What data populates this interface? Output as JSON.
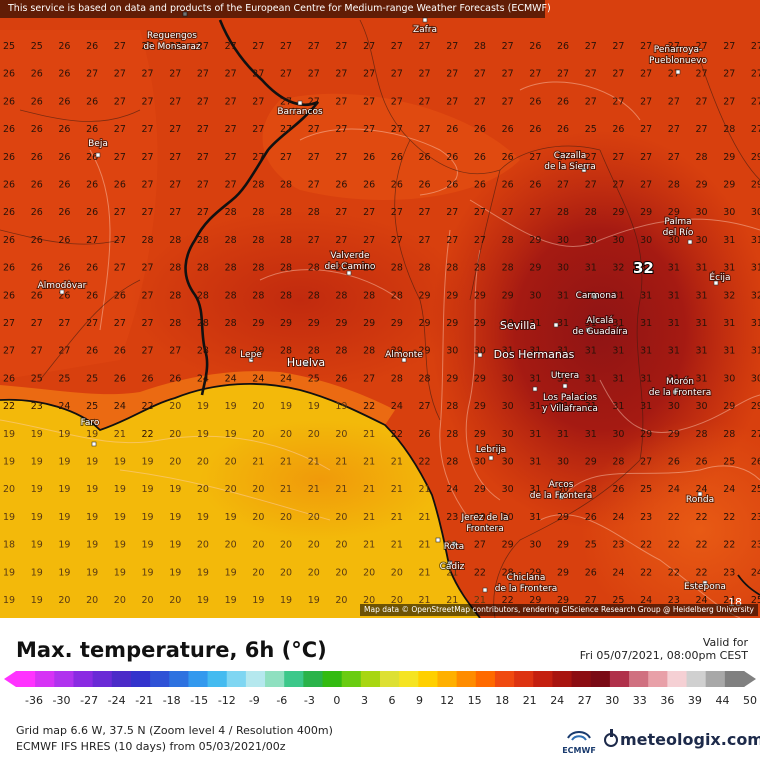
{
  "map": {
    "disclaimer": "This service is based on data and products of the European Centre for Medium-range Weather Forecasts (ECMWF)",
    "attribution": "Map data © OpenStreetMap contributors, rendering GIScience Research Group @ Heidelberg University",
    "max_marker": "32",
    "corner_value": "18",
    "places": [
      {
        "name": "Reguengos de Monsaraz",
        "lines": [
          "Reguengos",
          "de Monsaraz"
        ]
      },
      {
        "name": "Zafra",
        "lines": [
          "Zafra"
        ]
      },
      {
        "name": "Peñarroya-Pueblonuevo",
        "lines": [
          "Peñarroya-",
          "Pueblonuevo"
        ]
      },
      {
        "name": "Barrancos",
        "lines": [
          "Barrancos"
        ]
      },
      {
        "name": "Beja",
        "lines": [
          "Beja"
        ]
      },
      {
        "name": "Cazalla de la Sierra",
        "lines": [
          "Cazalla",
          "de la Sierra"
        ]
      },
      {
        "name": "Palma del Río",
        "lines": [
          "Palma",
          "del Río"
        ]
      },
      {
        "name": "Écija",
        "lines": [
          "Écija"
        ]
      },
      {
        "name": "Valverde del Camino",
        "lines": [
          "Valverde",
          "del Camino"
        ]
      },
      {
        "name": "Almodôvar",
        "lines": [
          "Almodôvar"
        ]
      },
      {
        "name": "Carmona",
        "lines": [
          "Carmona"
        ]
      },
      {
        "name": "Sevilla",
        "lines": [
          "Sevilla"
        ]
      },
      {
        "name": "Alcalá de Guadaíra",
        "lines": [
          "Alcalá",
          "de Guadaíra"
        ]
      },
      {
        "name": "Lepe",
        "lines": [
          "Lepe"
        ]
      },
      {
        "name": "Huelva",
        "lines": [
          "Huelva"
        ]
      },
      {
        "name": "Almonte",
        "lines": [
          "Almonte"
        ]
      },
      {
        "name": "Dos Hermanas",
        "lines": [
          "Dos Hermanas"
        ]
      },
      {
        "name": "Utrera",
        "lines": [
          "Utrera"
        ]
      },
      {
        "name": "Morón de la Frontera",
        "lines": [
          "Morón",
          "de la Frontera"
        ]
      },
      {
        "name": "Los Palacios y Villafranca",
        "lines": [
          "Los Palacios",
          "y Villafranca"
        ]
      },
      {
        "name": "Faro",
        "lines": [
          "Faro"
        ]
      },
      {
        "name": "Lebrija",
        "lines": [
          "Lebrija"
        ]
      },
      {
        "name": "Arcos de la Frontera",
        "lines": [
          "Arcos",
          "de la Frontera"
        ]
      },
      {
        "name": "Ronda",
        "lines": [
          "Ronda"
        ]
      },
      {
        "name": "Jerez de la Frontera",
        "lines": [
          "Jerez de la",
          "Frontera"
        ]
      },
      {
        "name": "Rota",
        "lines": [
          "Rota"
        ]
      },
      {
        "name": "Cádiz",
        "lines": [
          "Cádiz"
        ]
      },
      {
        "name": "Chiclana de la Frontera",
        "lines": [
          "Chiclana",
          "de la Frontera"
        ]
      },
      {
        "name": "Estepona",
        "lines": [
          "Estepona"
        ]
      }
    ],
    "grid_rows": [
      "25 25 26 26 27 27 27 27 27 27 27 27 27 27 27 27 27 28 27 26 26 27 27 27 27 27 27 27",
      "26 26 26 27 27 27 27 27 27 27 27 27 27 27 27 27 27 27 27 27 27 27 27 27 27 27 27 27",
      "26 26 26 26 27 27 27 27 27 27 27 27 27 27 27 27 27 27 27 26 26 27 27 27 27 27 27 27",
      "26 26 26 26 27 27 27 27 27 27 27 27 27 27 27 27 26 26 26 26 26 25 26 27 27 27 28 27",
      "26 26 26 26 27 27 27 27 27 27 27 27 27 26 26 26 26 26 26 27 27 27 27 27 27 28 29 29",
      "26 26 26 26 26 27 27 27 27 28 28 27 26 26 26 26 26 26 26 26 27 27 27 27 28 29 29 29",
      "26 26 26 26 27 27 27 27 28 28 28 28 27 27 27 27 27 27 27 27 28 28 29 29 29 30 30 30",
      "26 26 26 27 27 28 28 28 28 28 28 27 27 27 27 27 27 27 28 29 30 30 30 30 30 30 31 31",
      "26 26 26 26 27 27 28 28 28 28 28 28 29 28 28 28 28 28 28 29 30 31 32 32 31 31 31 31",
      "26 26 26 26 26 27 28 28 28 28 28 28 28 28 28 29 29 29 29 30 31 31 31 31 31 31 32 32",
      "27 27 27 27 27 27 28 28 28 29 29 29 29 29 29 29 29 29 30 31 31 31 31 31 31 31 31 31",
      "27 27 27 26 26 27 27 28 28 29 28 28 28 28 29 29 30 30 31 31 31 31 31 31 31 31 31 31",
      "26 25 25 25 26 26 26 24 24 24 24 25 26 27 28 28 29 29 30 31 31 31 31 31 31 31 30 30",
      "22 23 24 25 24 22 20 19 19 20 19 19 19 22 24 27 28 29 30 31 31 31 31 31 30 30 29 29",
      "19 19 19 19 21 22 20 19 19 20 20 20 20 21 22 26 28 29 30 31 31 31 30 29 29 28 28 27",
      "19 19 19 19 19 19 20 20 20 21 21 21 21 21 21 22 28 30 30 31 30 29 28 27 26 26 25 26",
      "20 19 19 19 19 19 19 20 20 20 21 21 21 21 21 21 24 29 30 31 30 28 26 25 24 24 24 25",
      "19 19 19 19 19 19 19 19 19 20 20 20 20 21 21 21 23 29 30 31 29 26 24 23 22 22 22 23",
      "18 19 19 19 19 19 19 20 20 20 20 20 20 21 21 21 21 27 29 30 29 25 23 22 22 22 22 23",
      "19 19 19 19 19 19 19 19 19 20 20 20 20 20 20 21 21 22 28 29 29 26 24 22 22 22 23 24",
      "19 19 20 20 20 20 20 19 19 19 19 19 20 20 20 21 21 21 22 29 29 27 25 24 23 24 24 25"
    ]
  },
  "legend": {
    "title": "Max. temperature, 6h (°C)",
    "valid_label": "Valid for",
    "valid_date": "Fri 05/07/2021, 08:00pm CEST",
    "tick_labels": [
      "-36",
      "-30",
      "-27",
      "-24",
      "-21",
      "-18",
      "-15",
      "-12",
      "-9",
      "-6",
      "-3",
      "0",
      "3",
      "6",
      "9",
      "12",
      "15",
      "18",
      "21",
      "24",
      "27",
      "30",
      "33",
      "36",
      "39",
      "44",
      "50"
    ],
    "colors": [
      "#ff33ff",
      "#d633f5",
      "#b033ee",
      "#8a2be2",
      "#6a2ad6",
      "#4b2bc8",
      "#3333cc",
      "#2f52d6",
      "#2e72e0",
      "#3399ee",
      "#44bbf0",
      "#7fd6f2",
      "#b5e8ee",
      "#8fe0c0",
      "#3cc88a",
      "#2ab34a",
      "#33bb11",
      "#6acc11",
      "#a8d611",
      "#dde033",
      "#f5e422",
      "#ffd000",
      "#ffb000",
      "#ff8c00",
      "#ff6a00",
      "#f04a10",
      "#dd3311",
      "#c41f0f",
      "#a8140f",
      "#8c0d12",
      "#7a0a15",
      "#b0304a",
      "#d07080",
      "#e8a0a8",
      "#f5d0d4",
      "#d0d0d0",
      "#a8a8a8",
      "#808080"
    ],
    "info_line1": "Grid map 6.6 W, 37.5 N (Zoom level 4 / Resolution 400m)",
    "info_line2": "ECMWF IFS HRES (10 days) from 05/03/2021/00z",
    "ecmwf_label": "ECMWF",
    "brand": "meteologix.com"
  }
}
